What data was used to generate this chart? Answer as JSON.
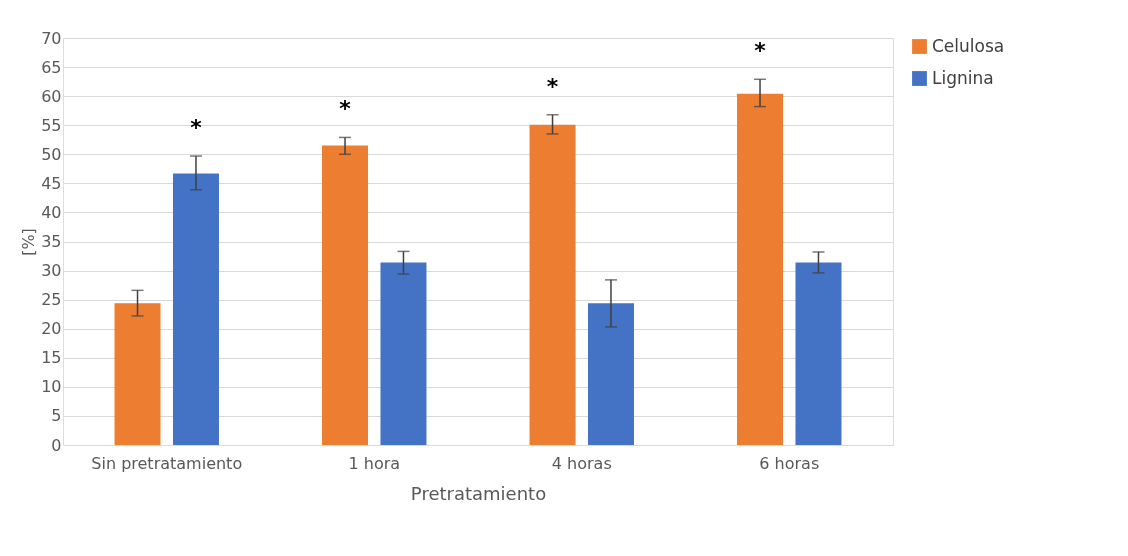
{
  "chart_data": {
    "type": "bar",
    "xlabel": "Pretratamiento",
    "ylabel": "[%]",
    "categories": [
      "Sin pretratamiento",
      "1 hora",
      "4 horas",
      "6 horas"
    ],
    "series": [
      {
        "name": "Celulosa",
        "color": "#ed7d31",
        "values": [
          24.4,
          51.5,
          55.1,
          60.4
        ],
        "errors": [
          [
            22.2,
            26.6
          ],
          [
            50.0,
            52.9
          ],
          [
            53.5,
            56.8
          ],
          [
            58.2,
            62.9
          ]
        ]
      },
      {
        "name": "Lignina",
        "color": "#4472c4",
        "values": [
          46.7,
          31.4,
          24.4,
          31.4
        ],
        "errors": [
          [
            43.9,
            49.7
          ],
          [
            29.4,
            33.3
          ],
          [
            20.3,
            28.4
          ],
          [
            29.6,
            33.2
          ]
        ]
      }
    ],
    "ylim": [
      0,
      70
    ],
    "yticks": [
      0,
      5,
      10,
      15,
      20,
      25,
      30,
      35,
      40,
      45,
      50,
      55,
      60,
      65,
      70
    ],
    "grid": "y",
    "legend": "right",
    "annotations": [
      "*",
      "*",
      "*",
      "*"
    ]
  }
}
